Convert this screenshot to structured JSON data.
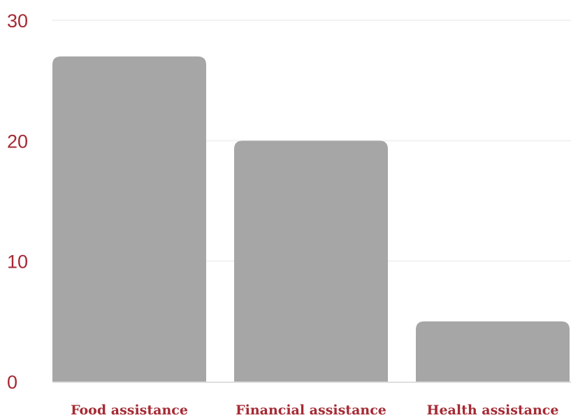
{
  "colors": {
    "text": "#a52a34",
    "bar": "#a6a6a6",
    "grid": "#f2f2f2",
    "axis": "#dedede",
    "background": "#ffffff"
  },
  "chart_data": {
    "type": "bar",
    "title": "",
    "xlabel": "",
    "ylabel": "",
    "categories": [
      "Food assistance",
      "Financial assistance",
      "Health assistance"
    ],
    "values": [
      27,
      20,
      5
    ],
    "ylim": [
      0,
      30
    ],
    "yticks": [
      "0",
      "10",
      "20",
      "30"
    ],
    "grid": true,
    "legend": "none"
  }
}
